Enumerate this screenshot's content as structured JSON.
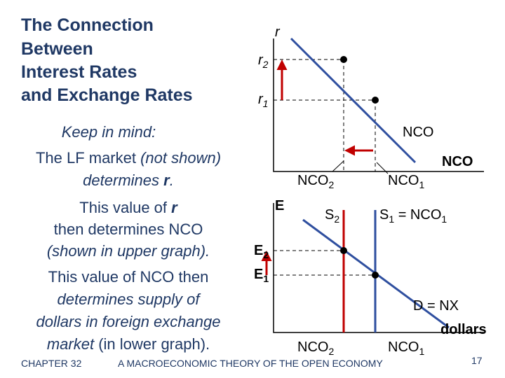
{
  "title": [
    "The Connection",
    "Between",
    "Interest Rates",
    "and Exchange Rates"
  ],
  "keep_in_mind": {
    "heading": "Keep in mind:",
    "lines": [
      [
        "The LF market ",
        "(not shown)"
      ],
      [
        "determines ",
        "r",
        "."
      ],
      [
        "This value of ",
        "r"
      ],
      [
        "then determines NCO"
      ],
      [
        "(shown in upper graph)."
      ],
      [
        "This value of NCO then"
      ],
      [
        "determines supply of"
      ],
      [
        "dollars in foreign exchange"
      ],
      [
        "market ",
        "(in lower graph)."
      ]
    ]
  },
  "upper_graph": {
    "y_axis": "r",
    "r2": [
      "r",
      "2"
    ],
    "r1": [
      "r",
      "1"
    ],
    "curve": "NCO",
    "x_axis": "NCO",
    "nco2": [
      "NCO",
      "2"
    ],
    "nco1": [
      "NCO",
      "1"
    ]
  },
  "lower_graph": {
    "y_axis": "E",
    "e2": [
      "E",
      "2"
    ],
    "e1": [
      "E",
      "1"
    ],
    "s2": [
      "S",
      "2"
    ],
    "s1": [
      "S",
      "1",
      " = NCO",
      "1"
    ],
    "demand": "D = NX",
    "x_axis": "dollars",
    "nco2": [
      "NCO",
      "2"
    ],
    "nco1": [
      "NCO",
      "1"
    ]
  },
  "footer": {
    "chapter": "CHAPTER 32",
    "subtitle": "A MACROECONOMIC THEORY OF THE OPEN ECONOMY",
    "page": "17"
  }
}
